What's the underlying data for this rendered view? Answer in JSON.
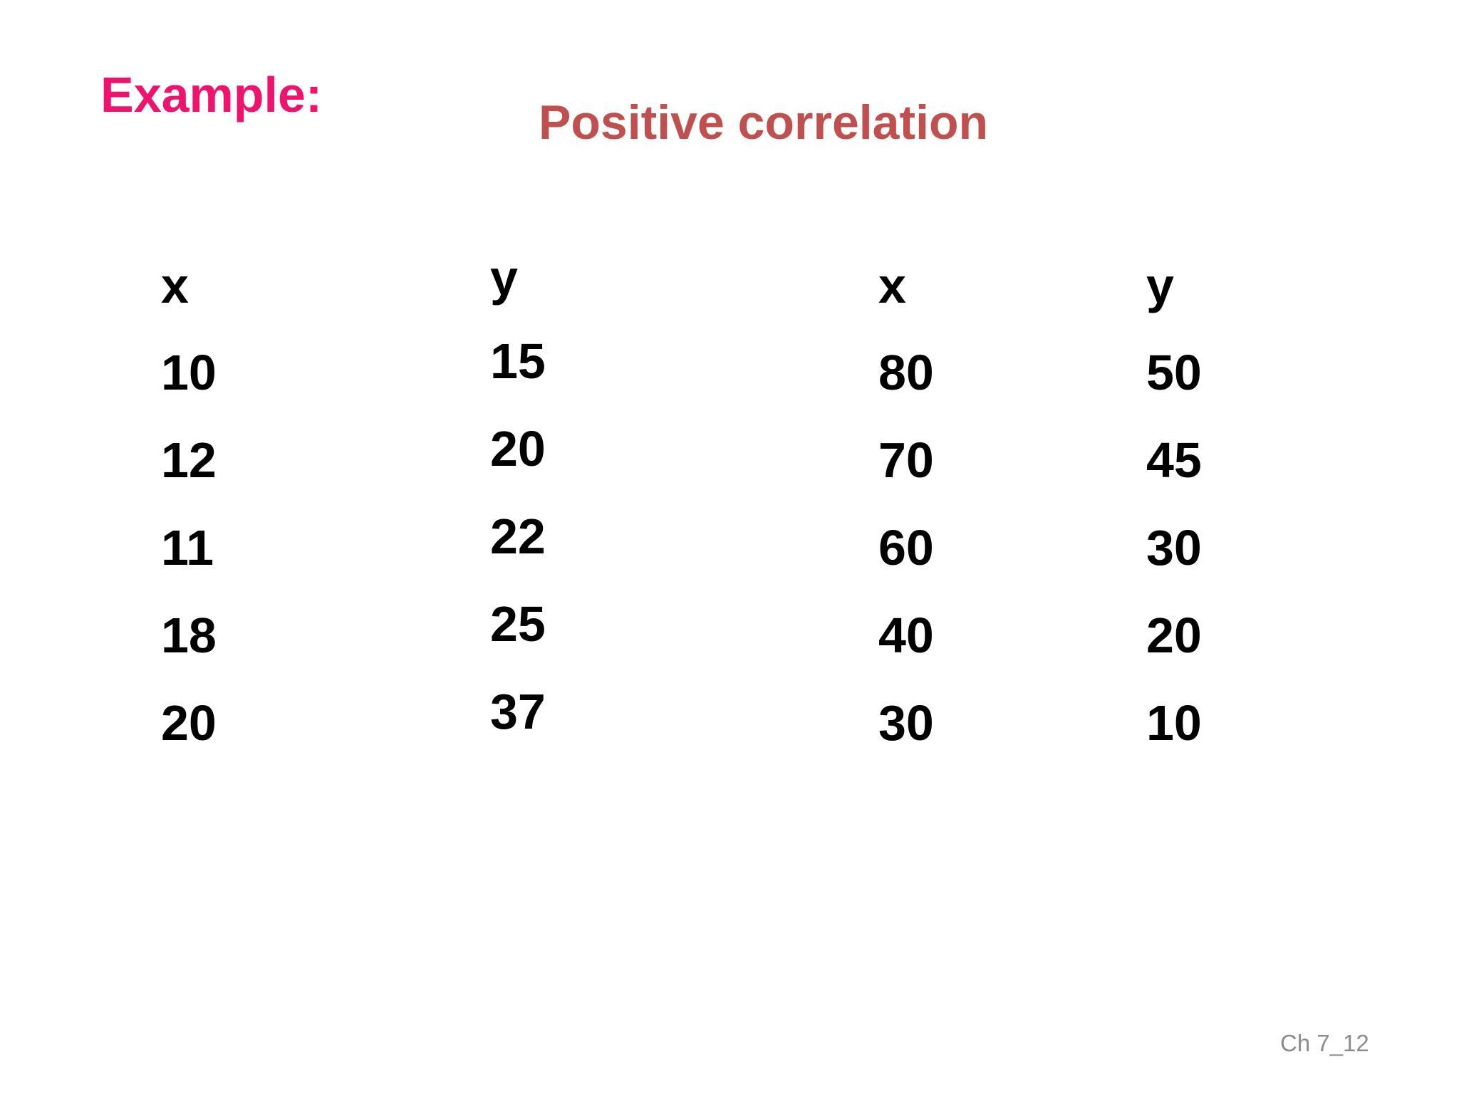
{
  "slide": {
    "example_label": "Example:",
    "title": "Positive correlation",
    "page_number": "Ch 7_12",
    "colors": {
      "example_label": "#f0136e",
      "title": "#c0504d",
      "body_text": "#000000",
      "page_number": "#8c8c8c"
    }
  },
  "table": {
    "headers": [
      "x",
      "y",
      "x",
      "y"
    ],
    "rows": [
      [
        "10",
        "15",
        "80",
        "50"
      ],
      [
        "12",
        "20",
        "70",
        "45"
      ],
      [
        "11",
        "22",
        "60",
        "30"
      ],
      [
        "18",
        "25",
        "40",
        "20"
      ],
      [
        "20",
        "37",
        "30",
        "10"
      ]
    ]
  }
}
